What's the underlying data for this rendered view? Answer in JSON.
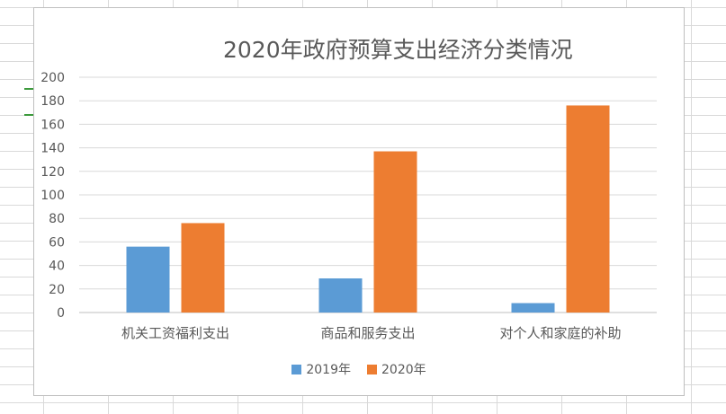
{
  "chart_data": {
    "type": "bar",
    "title": "2020年政府预算支出经济分类情况",
    "categories": [
      "机关工资福利支出",
      "商品和服务支出",
      "对个人和家庭的补助"
    ],
    "series": [
      {
        "name": "2019年",
        "values": [
          56,
          29,
          8
        ],
        "color": "#5b9bd5"
      },
      {
        "name": "2020年",
        "values": [
          76,
          137,
          176
        ],
        "color": "#ed7d31"
      }
    ],
    "ylim": [
      0,
      200
    ],
    "yticks": [
      "0",
      "20",
      "40",
      "60",
      "80",
      "100",
      "120",
      "140",
      "160",
      "180",
      "200"
    ],
    "grid": true,
    "legend_position": "bottom"
  }
}
